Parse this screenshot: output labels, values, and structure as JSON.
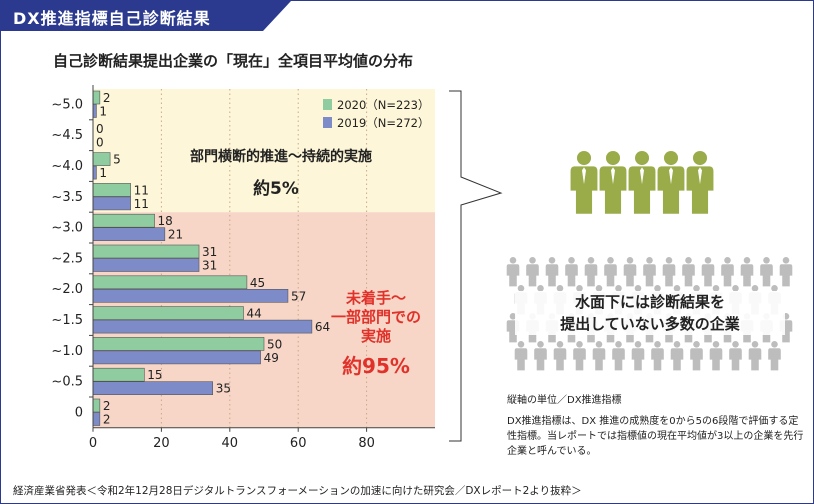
{
  "header": {
    "title": "DX推進指標自己診断結果",
    "banner_color": "#2b3a8f"
  },
  "chart_title": "自己診断結果提出企業の「現在」全項目平均値の分布",
  "chart_data": {
    "type": "bar",
    "orientation": "horizontal",
    "categories": [
      "~5.0",
      "~4.5",
      "~4.0",
      "~3.5",
      "~3.0",
      "~2.5",
      "~2.0",
      "~1.5",
      "~1.0",
      "~0.5",
      "0"
    ],
    "series": [
      {
        "name": "2020（N=223）",
        "color": "#8fcca0",
        "values": [
          2,
          0,
          5,
          11,
          18,
          31,
          45,
          44,
          50,
          15,
          2
        ]
      },
      {
        "name": "2019（N=272）",
        "color": "#7d8bc9",
        "values": [
          1,
          0,
          1,
          11,
          21,
          31,
          57,
          64,
          49,
          35,
          2
        ]
      }
    ],
    "x_ticks": [
      "0",
      "20",
      "40",
      "60",
      "80"
    ],
    "xlim": [
      0,
      100
    ],
    "grid": "vertical dotted",
    "legend": "top-right",
    "regions": [
      {
        "label_line1": "部門横断的推進〜持続的実施",
        "label_line2": "約5%",
        "color": "#fdf6d8",
        "text_color": "#222222"
      },
      {
        "label_line1": "未着手〜",
        "label_line2": "一部部門での",
        "label_line3": "実施",
        "label_line4": "約95%",
        "color": "#f7d6c8",
        "text_color": "#e0322a"
      }
    ]
  },
  "right_panel": {
    "caption_line1": "水面下には診断結果を",
    "caption_line2": "提出していない多数の企業",
    "top_people_color": "#9aac4a",
    "bottom_people_color": "#bdbdbd"
  },
  "notes": {
    "axis_note": "縦軸の単位／DX推進指標",
    "desc": "DX推進指標は、DX 推進の成熟度を0から5の6段階で評価する定性指標。当レポートでは指標値の現在平均値が3以上の企業を先行企業と呼んでいる。"
  },
  "source": "経済産業省発表＜令和2年12月28日デジタルトランスフォーメーションの加速に向けた研究会／DXレポート2より抜粋＞"
}
